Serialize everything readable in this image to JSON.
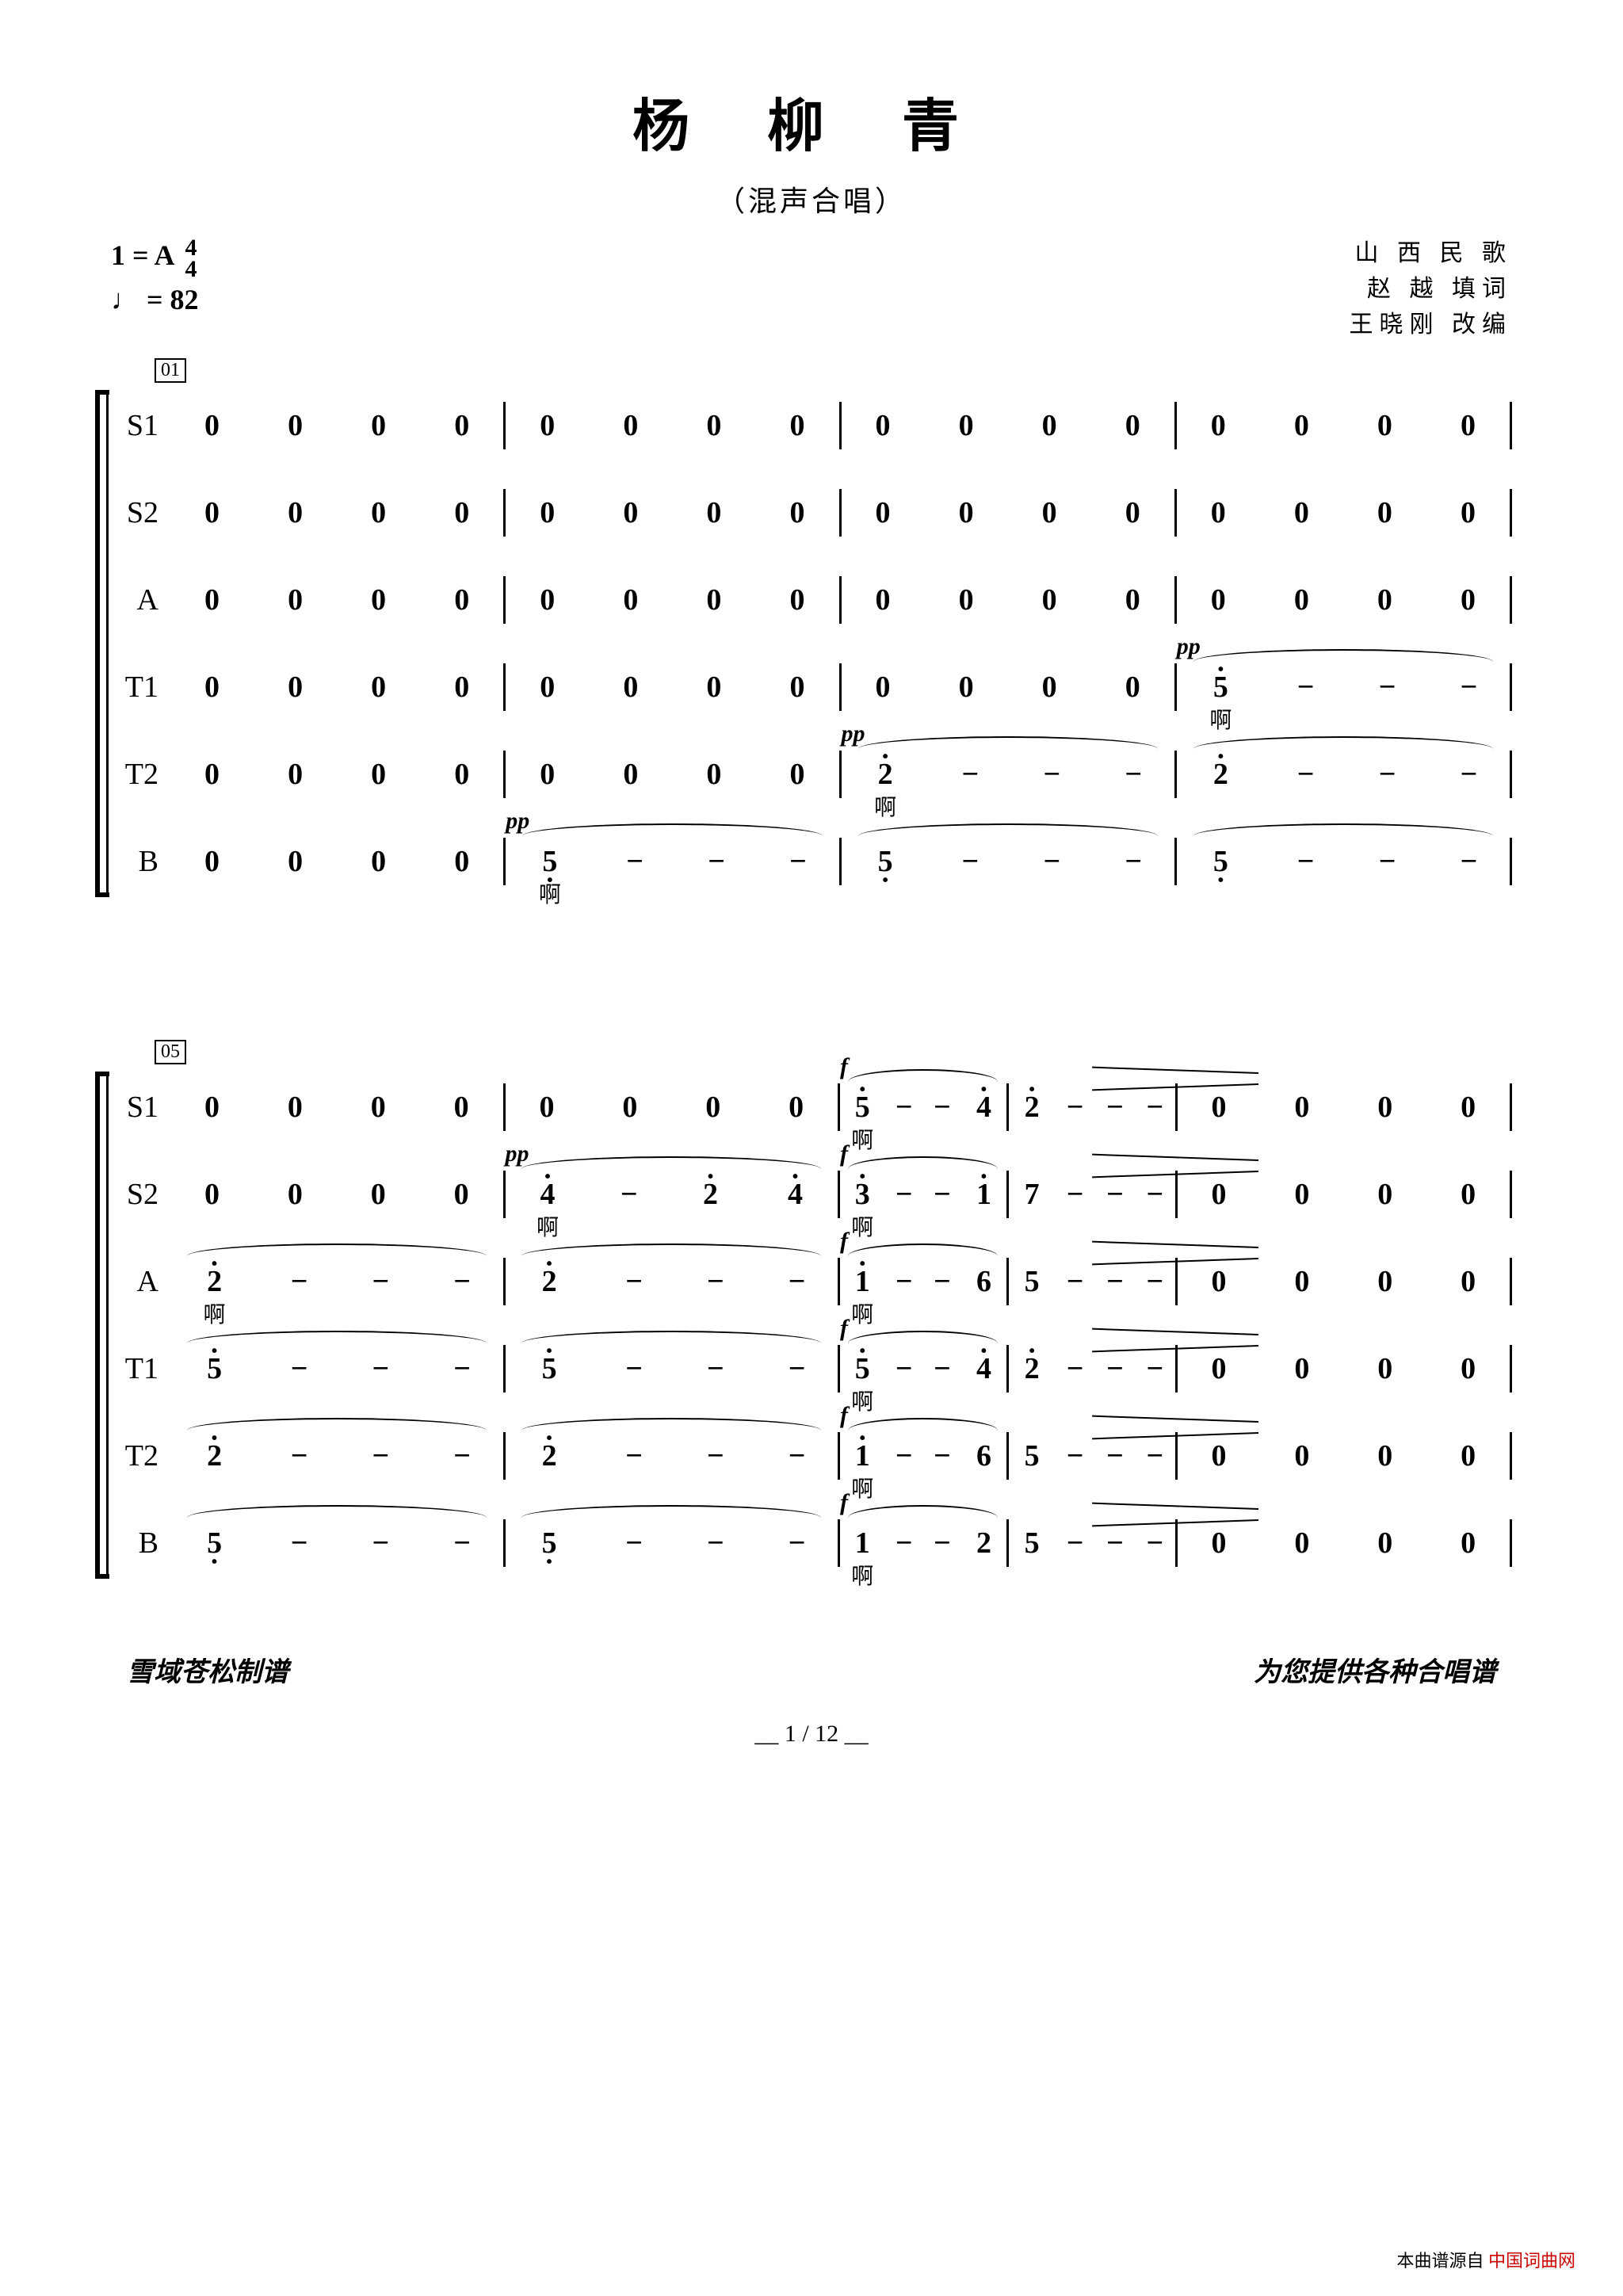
{
  "title": "杨  柳  青",
  "subtitle": "（混声合唱）",
  "key": "1 = A",
  "time_sig_top": "4",
  "time_sig_bot": "4",
  "tempo": "♩ = 82",
  "credits": [
    "山 西 民 歌",
    "赵  越 填词",
    "王晓刚 改编"
  ],
  "parts": [
    "S1",
    "S2",
    "A",
    "T1",
    "T2",
    "B"
  ],
  "lyric_ah": "啊",
  "dyn_pp": "pp",
  "dyn_f": "f",
  "system1": {
    "measure_label": "01",
    "rows": [
      {
        "part": "S1",
        "bars": [
          {
            "n": [
              "0",
              "0",
              "0",
              "0"
            ]
          },
          {
            "n": [
              "0",
              "0",
              "0",
              "0"
            ]
          },
          {
            "n": [
              "0",
              "0",
              "0",
              "0"
            ]
          },
          {
            "n": [
              "0",
              "0",
              "0",
              "0"
            ]
          }
        ]
      },
      {
        "part": "S2",
        "bars": [
          {
            "n": [
              "0",
              "0",
              "0",
              "0"
            ]
          },
          {
            "n": [
              "0",
              "0",
              "0",
              "0"
            ]
          },
          {
            "n": [
              "0",
              "0",
              "0",
              "0"
            ]
          },
          {
            "n": [
              "0",
              "0",
              "0",
              "0"
            ]
          }
        ]
      },
      {
        "part": "A",
        "bars": [
          {
            "n": [
              "0",
              "0",
              "0",
              "0"
            ]
          },
          {
            "n": [
              "0",
              "0",
              "0",
              "0"
            ]
          },
          {
            "n": [
              "0",
              "0",
              "0",
              "0"
            ]
          },
          {
            "n": [
              "0",
              "0",
              "0",
              "0"
            ]
          }
        ]
      },
      {
        "part": "T1",
        "bars": [
          {
            "n": [
              "0",
              "0",
              "0",
              "0"
            ]
          },
          {
            "n": [
              "0",
              "0",
              "0",
              "0"
            ]
          },
          {
            "n": [
              "0",
              "0",
              "0",
              "0"
            ]
          },
          {
            "dyn": "pp",
            "n": [
              {
                "v": "5",
                "oct": "high",
                "ly": "啊"
              },
              "−",
              "−",
              "−"
            ],
            "slur": true
          }
        ]
      },
      {
        "part": "T2",
        "bars": [
          {
            "n": [
              "0",
              "0",
              "0",
              "0"
            ]
          },
          {
            "n": [
              "0",
              "0",
              "0",
              "0"
            ]
          },
          {
            "dyn": "pp",
            "n": [
              {
                "v": "2",
                "oct": "high",
                "ly": "啊"
              },
              "−",
              "−",
              "−"
            ],
            "slur": true
          },
          {
            "n": [
              {
                "v": "2",
                "oct": "high"
              },
              "−",
              "−",
              "−"
            ],
            "slur": true
          }
        ]
      },
      {
        "part": "B",
        "bars": [
          {
            "n": [
              "0",
              "0",
              "0",
              "0"
            ]
          },
          {
            "dyn": "pp",
            "n": [
              {
                "v": "5",
                "oct": "low",
                "ly": "啊"
              },
              "−",
              "−",
              "−"
            ],
            "slur": true
          },
          {
            "n": [
              {
                "v": "5",
                "oct": "low"
              },
              "−",
              "−",
              "−"
            ],
            "slur": true
          },
          {
            "n": [
              {
                "v": "5",
                "oct": "low"
              },
              "−",
              "−",
              "−"
            ],
            "slur": true
          }
        ]
      }
    ]
  },
  "system2": {
    "measure_label": "05",
    "rows": [
      {
        "part": "S1",
        "bars": [
          {
            "n": [
              "0",
              "0",
              "0",
              "0"
            ]
          },
          {
            "n": [
              "0",
              "0",
              "0",
              "0"
            ]
          },
          {
            "dyn": "f",
            "slur": true,
            "half": true,
            "n": [
              {
                "v": "5",
                "oct": "high",
                "ly": "啊"
              },
              "−",
              "−",
              {
                "v": "4",
                "oct": "high"
              }
            ]
          },
          {
            "half": true,
            "decresc": true,
            "n": [
              {
                "v": "2",
                "oct": "high"
              },
              "−",
              "−",
              "−"
            ]
          },
          {
            "n": [
              "0",
              "0",
              "0",
              "0"
            ]
          }
        ]
      },
      {
        "part": "S2",
        "bars": [
          {
            "n": [
              "0",
              "0",
              "0",
              "0"
            ]
          },
          {
            "dyn": "pp",
            "slur": true,
            "n": [
              {
                "v": "4",
                "oct": "high",
                "ly": "啊"
              },
              "−",
              {
                "v": "2",
                "oct": "high"
              },
              {
                "v": "4",
                "oct": "high"
              }
            ]
          },
          {
            "dyn": "f",
            "slur": true,
            "half": true,
            "n": [
              {
                "v": "3",
                "oct": "high",
                "ly": "啊"
              },
              "−",
              "−",
              {
                "v": "1",
                "oct": "high"
              }
            ]
          },
          {
            "half": true,
            "decresc": true,
            "n": [
              "7",
              "−",
              "−",
              "−"
            ]
          },
          {
            "n": [
              "0",
              "0",
              "0",
              "0"
            ]
          }
        ]
      },
      {
        "part": "A",
        "bars": [
          {
            "slur": true,
            "n": [
              {
                "v": "2",
                "oct": "high",
                "ly": "啊"
              },
              "−",
              "−",
              "−"
            ]
          },
          {
            "slur": true,
            "n": [
              {
                "v": "2",
                "oct": "high"
              },
              "−",
              "−",
              "−"
            ]
          },
          {
            "dyn": "f",
            "slur": true,
            "half": true,
            "n": [
              {
                "v": "1",
                "oct": "high",
                "ly": "啊"
              },
              "−",
              "−",
              "6"
            ]
          },
          {
            "half": true,
            "decresc": true,
            "n": [
              "5",
              "−",
              "−",
              "−"
            ]
          },
          {
            "n": [
              "0",
              "0",
              "0",
              "0"
            ]
          }
        ]
      },
      {
        "part": "T1",
        "bars": [
          {
            "slur": true,
            "n": [
              {
                "v": "5",
                "oct": "high"
              },
              "−",
              "−",
              "−"
            ]
          },
          {
            "slur": true,
            "n": [
              {
                "v": "5",
                "oct": "high"
              },
              "−",
              "−",
              "−"
            ]
          },
          {
            "dyn": "f",
            "slur": true,
            "half": true,
            "n": [
              {
                "v": "5",
                "oct": "high",
                "ly": "啊"
              },
              "−",
              "−",
              {
                "v": "4",
                "oct": "high"
              }
            ]
          },
          {
            "half": true,
            "decresc": true,
            "n": [
              {
                "v": "2",
                "oct": "high"
              },
              "−",
              "−",
              "−"
            ]
          },
          {
            "n": [
              "0",
              "0",
              "0",
              "0"
            ]
          }
        ]
      },
      {
        "part": "T2",
        "bars": [
          {
            "slur": true,
            "n": [
              {
                "v": "2",
                "oct": "high"
              },
              "−",
              "−",
              "−"
            ]
          },
          {
            "slur": true,
            "n": [
              {
                "v": "2",
                "oct": "high"
              },
              "−",
              "−",
              "−"
            ]
          },
          {
            "dyn": "f",
            "slur": true,
            "half": true,
            "n": [
              {
                "v": "1",
                "oct": "high",
                "ly": "啊"
              },
              "−",
              "−",
              "6"
            ]
          },
          {
            "half": true,
            "decresc": true,
            "n": [
              "5",
              "−",
              "−",
              "−"
            ]
          },
          {
            "n": [
              "0",
              "0",
              "0",
              "0"
            ]
          }
        ]
      },
      {
        "part": "B",
        "bars": [
          {
            "slur": true,
            "n": [
              {
                "v": "5",
                "oct": "low"
              },
              "−",
              "−",
              "−"
            ]
          },
          {
            "slur": true,
            "n": [
              {
                "v": "5",
                "oct": "low"
              },
              "−",
              "−",
              "−"
            ]
          },
          {
            "dyn": "f",
            "slur": true,
            "half": true,
            "n": [
              {
                "v": "1",
                "ly": "啊"
              },
              "−",
              "−",
              "2"
            ]
          },
          {
            "half": true,
            "decresc": true,
            "n": [
              "5",
              "−",
              "−",
              "−"
            ]
          },
          {
            "n": [
              "0",
              "0",
              "0",
              "0"
            ]
          }
        ]
      }
    ]
  },
  "footer_left": "雪域苍松制谱",
  "footer_right": "为您提供各种合唱谱",
  "page_num": "__ 1 / 12 __",
  "watermark_a": "本曲谱源自",
  "watermark_b": "中国词曲网"
}
